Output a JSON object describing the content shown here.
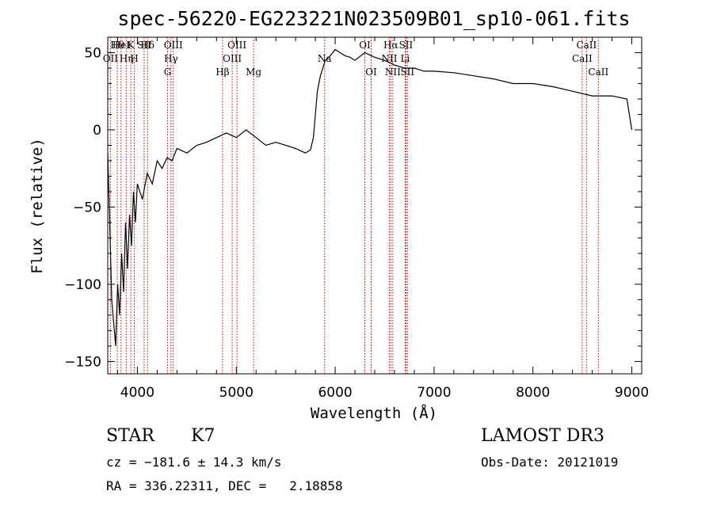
{
  "chart_data": {
    "type": "line",
    "title": "spec-56220-EG223221N023509B01_sp10-061.fits",
    "xlabel": "Wavelength (Å)",
    "ylabel": "Flux (relative)",
    "xlim": [
      3700,
      9100
    ],
    "ylim": [
      -158,
      60
    ],
    "xticks": [
      4000,
      5000,
      6000,
      7000,
      8000,
      9000
    ],
    "yticks": [
      -150,
      -100,
      -50,
      0,
      50
    ],
    "ytick_labels": [
      "−150",
      "−100",
      "−50",
      "0",
      "50"
    ],
    "x": [
      3700,
      3720,
      3740,
      3760,
      3780,
      3800,
      3820,
      3840,
      3860,
      3880,
      3900,
      3920,
      3940,
      3960,
      3980,
      4000,
      4050,
      4100,
      4150,
      4200,
      4250,
      4300,
      4350,
      4400,
      4500,
      4600,
      4700,
      4800,
      4900,
      5000,
      5100,
      5200,
      5300,
      5400,
      5500,
      5600,
      5700,
      5750,
      5780,
      5800,
      5820,
      5850,
      5900,
      5950,
      6000,
      6050,
      6100,
      6150,
      6200,
      6300,
      6400,
      6500,
      6600,
      6700,
      6800,
      6900,
      7000,
      7200,
      7400,
      7600,
      7800,
      8000,
      8200,
      8400,
      8600,
      8800,
      8950,
      9000
    ],
    "y": [
      -15,
      -60,
      -110,
      -125,
      -140,
      -100,
      -120,
      -80,
      -105,
      -60,
      -90,
      -55,
      -75,
      -40,
      -60,
      -35,
      -45,
      -28,
      -35,
      -20,
      -25,
      -18,
      -20,
      -12,
      -15,
      -10,
      -8,
      -5,
      -2,
      -5,
      0,
      -5,
      -10,
      -8,
      -10,
      -12,
      -15,
      -13,
      -5,
      10,
      25,
      35,
      45,
      48,
      52,
      50,
      48,
      47,
      45,
      50,
      47,
      45,
      42,
      40,
      40,
      38,
      38,
      37,
      35,
      33,
      30,
      30,
      28,
      25,
      22,
      22,
      20,
      0
    ],
    "series": [
      {
        "name": "Flux",
        "color": "#000000"
      }
    ],
    "emission_lines": [
      {
        "label": "Hθ",
        "x": 3797,
        "row": 0
      },
      {
        "label": "OII",
        "x": 3727,
        "row": 1
      },
      {
        "label": "HeI",
        "x": 3835,
        "row": 0
      },
      {
        "label": "Hη",
        "x": 3889,
        "row": 1
      },
      {
        "label": "K",
        "x": 3934,
        "row": 0
      },
      {
        "label": "SII",
        "x": 4068,
        "row": 0
      },
      {
        "label": "H",
        "x": 3969,
        "row": 1
      },
      {
        "label": "Hδ",
        "x": 4102,
        "row": 0
      },
      {
        "label": "OIII",
        "x": 4363,
        "row": 0
      },
      {
        "label": "Hγ",
        "x": 4340,
        "row": 1
      },
      {
        "label": "G",
        "x": 4305,
        "row": 2
      },
      {
        "label": "Hβ",
        "x": 4861,
        "row": 2
      },
      {
        "label": "OIII",
        "x": 5007,
        "row": 0
      },
      {
        "label": "OIII",
        "x": 4959,
        "row": 1
      },
      {
        "label": "Mg",
        "x": 5175,
        "row": 2
      },
      {
        "label": "Na",
        "x": 5893,
        "row": 1
      },
      {
        "label": "OI",
        "x": 6300,
        "row": 0
      },
      {
        "label": "OI",
        "x": 6364,
        "row": 2
      },
      {
        "label": "Hα",
        "x": 6563,
        "row": 0
      },
      {
        "label": "NII",
        "x": 6548,
        "row": 1
      },
      {
        "label": "NII",
        "x": 6583,
        "row": 2
      },
      {
        "label": "SII",
        "x": 6716,
        "row": 0
      },
      {
        "label": "Li",
        "x": 6708,
        "row": 1
      },
      {
        "label": "SII",
        "x": 6731,
        "row": 2
      },
      {
        "label": "CaII",
        "x": 8542,
        "row": 0
      },
      {
        "label": "CaII",
        "x": 8498,
        "row": 1
      },
      {
        "label": "CaII",
        "x": 8662,
        "row": 2
      }
    ]
  },
  "info": {
    "object_class": "STAR",
    "subclass": "K7",
    "survey": "LAMOST DR3",
    "cz": "cz = −181.6 ± 14.3 km/s",
    "obs_date": "Obs-Date: 20121019",
    "radec": "RA = 336.22311, DEC =   2.18858"
  }
}
